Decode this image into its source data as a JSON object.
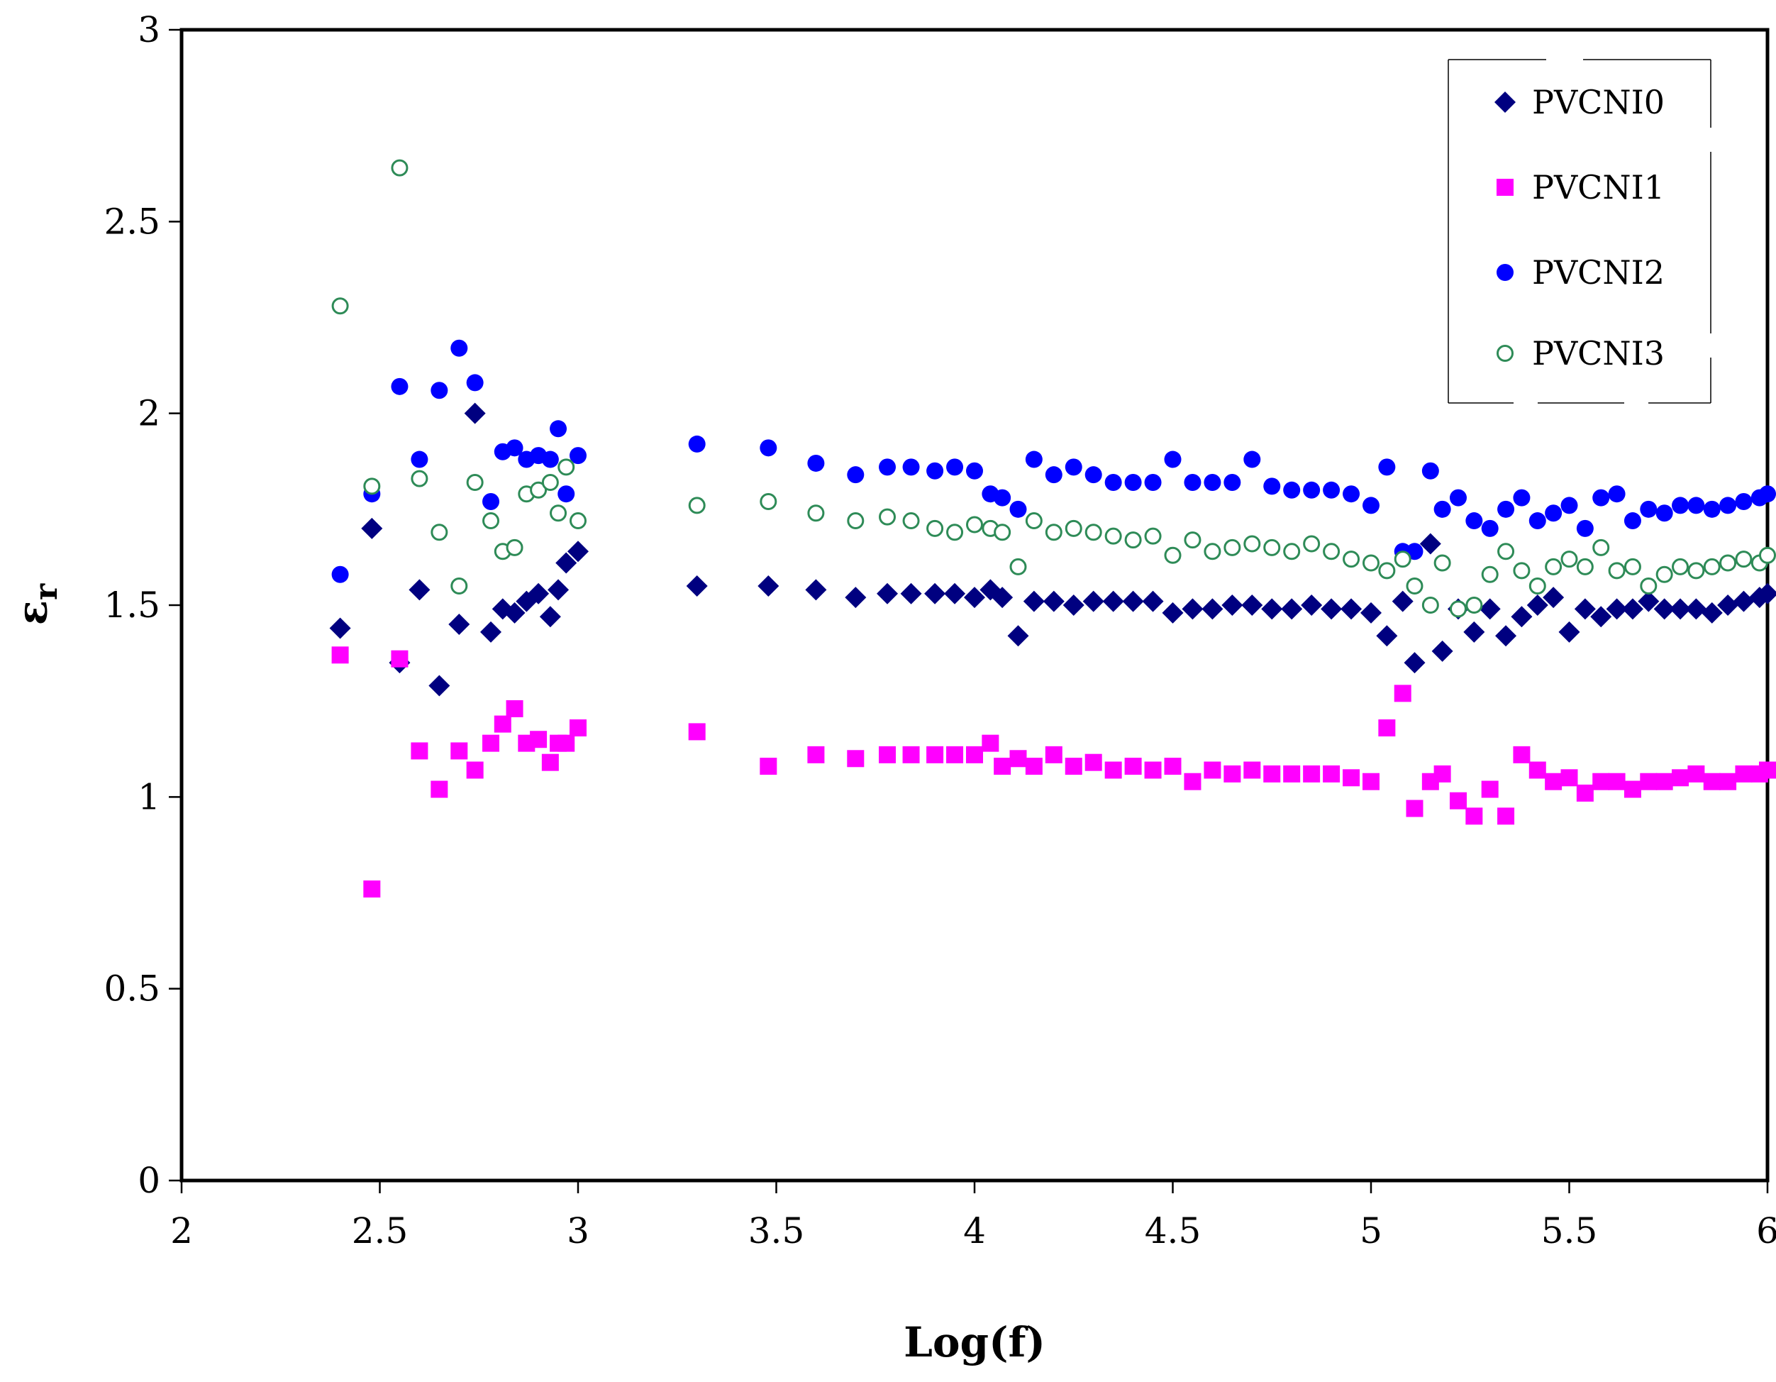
{
  "chart_data": {
    "type": "scatter",
    "title": "",
    "xlabel": "Log(f)",
    "ylabel": "εr",
    "ylabel_main": "ε",
    "ylabel_sub": "r",
    "xlim": [
      2,
      6
    ],
    "ylim": [
      0,
      3
    ],
    "xticks": [
      "2",
      "2.5",
      "3",
      "3.5",
      "4",
      "4.5",
      "5",
      "5.5",
      "6"
    ],
    "yticks": [
      "0",
      "0.5",
      "1",
      "1.5",
      "2",
      "2.5",
      "3"
    ],
    "grid": false,
    "legend_position": "top-right",
    "series": [
      {
        "name": "PVCNI0",
        "marker": "diamond",
        "color": "#000080",
        "x": [
          2.4,
          2.48,
          2.55,
          2.6,
          2.65,
          2.7,
          2.74,
          2.78,
          2.81,
          2.84,
          2.87,
          2.9,
          2.93,
          2.95,
          2.97,
          3.0,
          3.3,
          3.48,
          3.6,
          3.7,
          3.78,
          3.84,
          3.9,
          3.95,
          4.0,
          4.04,
          4.07,
          4.11,
          4.15,
          4.2,
          4.25,
          4.3,
          4.35,
          4.4,
          4.45,
          4.5,
          4.55,
          4.6,
          4.65,
          4.7,
          4.75,
          4.8,
          4.85,
          4.9,
          4.95,
          5.0,
          5.04,
          5.08,
          5.11,
          5.15,
          5.18,
          5.22,
          5.26,
          5.3,
          5.34,
          5.38,
          5.42,
          5.46,
          5.5,
          5.54,
          5.58,
          5.62,
          5.66,
          5.7,
          5.74,
          5.78,
          5.82,
          5.86,
          5.9,
          5.94,
          5.98,
          6.0
        ],
        "y": [
          1.44,
          1.7,
          1.35,
          1.54,
          1.29,
          1.45,
          2.0,
          1.43,
          1.49,
          1.48,
          1.51,
          1.53,
          1.47,
          1.54,
          1.61,
          1.64,
          1.55,
          1.55,
          1.54,
          1.52,
          1.53,
          1.53,
          1.53,
          1.53,
          1.52,
          1.54,
          1.52,
          1.42,
          1.51,
          1.51,
          1.5,
          1.51,
          1.51,
          1.51,
          1.51,
          1.48,
          1.49,
          1.49,
          1.5,
          1.5,
          1.49,
          1.49,
          1.5,
          1.49,
          1.49,
          1.48,
          1.42,
          1.51,
          1.35,
          1.66,
          1.38,
          1.49,
          1.43,
          1.49,
          1.42,
          1.47,
          1.5,
          1.52,
          1.43,
          1.49,
          1.47,
          1.49,
          1.49,
          1.51,
          1.49,
          1.49,
          1.49,
          1.48,
          1.5,
          1.51,
          1.52,
          1.53
        ]
      },
      {
        "name": "PVCNI1",
        "marker": "square",
        "color": "#ff00ff",
        "x": [
          2.4,
          2.48,
          2.55,
          2.6,
          2.65,
          2.7,
          2.74,
          2.78,
          2.81,
          2.84,
          2.87,
          2.9,
          2.93,
          2.95,
          2.97,
          3.0,
          3.3,
          3.48,
          3.6,
          3.7,
          3.78,
          3.84,
          3.9,
          3.95,
          4.0,
          4.04,
          4.07,
          4.11,
          4.15,
          4.2,
          4.25,
          4.3,
          4.35,
          4.4,
          4.45,
          4.5,
          4.55,
          4.6,
          4.65,
          4.7,
          4.75,
          4.8,
          4.85,
          4.9,
          4.95,
          5.0,
          5.04,
          5.08,
          5.11,
          5.15,
          5.18,
          5.22,
          5.26,
          5.3,
          5.34,
          5.38,
          5.42,
          5.46,
          5.5,
          5.54,
          5.58,
          5.62,
          5.66,
          5.7,
          5.74,
          5.78,
          5.82,
          5.86,
          5.9,
          5.94,
          5.98,
          6.0
        ],
        "y": [
          1.37,
          0.76,
          1.36,
          1.12,
          1.02,
          1.12,
          1.07,
          1.14,
          1.19,
          1.23,
          1.14,
          1.15,
          1.09,
          1.14,
          1.14,
          1.18,
          1.17,
          1.08,
          1.11,
          1.1,
          1.11,
          1.11,
          1.11,
          1.11,
          1.11,
          1.14,
          1.08,
          1.1,
          1.08,
          1.11,
          1.08,
          1.09,
          1.07,
          1.08,
          1.07,
          1.08,
          1.04,
          1.07,
          1.06,
          1.07,
          1.06,
          1.06,
          1.06,
          1.06,
          1.05,
          1.04,
          1.18,
          1.27,
          0.97,
          1.04,
          1.06,
          0.99,
          0.95,
          1.02,
          0.95,
          1.11,
          1.07,
          1.04,
          1.05,
          1.01,
          1.04,
          1.04,
          1.02,
          1.04,
          1.04,
          1.05,
          1.06,
          1.04,
          1.04,
          1.06,
          1.06,
          1.07
        ]
      },
      {
        "name": "PVCNI2",
        "marker": "circle",
        "color": "#0000ff",
        "x": [
          2.4,
          2.48,
          2.55,
          2.6,
          2.65,
          2.7,
          2.74,
          2.78,
          2.81,
          2.84,
          2.87,
          2.9,
          2.93,
          2.95,
          2.97,
          3.0,
          3.3,
          3.48,
          3.6,
          3.7,
          3.78,
          3.84,
          3.9,
          3.95,
          4.0,
          4.04,
          4.07,
          4.11,
          4.15,
          4.2,
          4.25,
          4.3,
          4.35,
          4.4,
          4.45,
          4.5,
          4.55,
          4.6,
          4.65,
          4.7,
          4.75,
          4.8,
          4.85,
          4.9,
          4.95,
          5.0,
          5.04,
          5.08,
          5.11,
          5.15,
          5.18,
          5.22,
          5.26,
          5.3,
          5.34,
          5.38,
          5.42,
          5.46,
          5.5,
          5.54,
          5.58,
          5.62,
          5.66,
          5.7,
          5.74,
          5.78,
          5.82,
          5.86,
          5.9,
          5.94,
          5.98,
          6.0
        ],
        "y": [
          1.58,
          1.79,
          2.07,
          1.88,
          2.06,
          2.17,
          2.08,
          1.77,
          1.9,
          1.91,
          1.88,
          1.89,
          1.88,
          1.96,
          1.79,
          1.89,
          1.92,
          1.91,
          1.87,
          1.84,
          1.86,
          1.86,
          1.85,
          1.86,
          1.85,
          1.79,
          1.78,
          1.75,
          1.88,
          1.84,
          1.86,
          1.84,
          1.82,
          1.82,
          1.82,
          1.88,
          1.82,
          1.82,
          1.82,
          1.88,
          1.81,
          1.8,
          1.8,
          1.8,
          1.79,
          1.76,
          1.86,
          1.64,
          1.64,
          1.85,
          1.75,
          1.78,
          1.72,
          1.7,
          1.75,
          1.78,
          1.72,
          1.74,
          1.76,
          1.7,
          1.78,
          1.79,
          1.72,
          1.75,
          1.74,
          1.76,
          1.76,
          1.75,
          1.76,
          1.77,
          1.78,
          1.79
        ]
      },
      {
        "name": "PVCNI3",
        "marker": "open-circle",
        "color": "#2e8b57",
        "x": [
          2.4,
          2.48,
          2.55,
          2.6,
          2.65,
          2.7,
          2.74,
          2.78,
          2.81,
          2.84,
          2.87,
          2.9,
          2.93,
          2.95,
          2.97,
          3.0,
          3.3,
          3.48,
          3.6,
          3.7,
          3.78,
          3.84,
          3.9,
          3.95,
          4.0,
          4.04,
          4.07,
          4.11,
          4.15,
          4.2,
          4.25,
          4.3,
          4.35,
          4.4,
          4.45,
          4.5,
          4.55,
          4.6,
          4.65,
          4.7,
          4.75,
          4.8,
          4.85,
          4.9,
          4.95,
          5.0,
          5.04,
          5.08,
          5.11,
          5.15,
          5.18,
          5.22,
          5.26,
          5.3,
          5.34,
          5.38,
          5.42,
          5.46,
          5.5,
          5.54,
          5.58,
          5.62,
          5.66,
          5.7,
          5.74,
          5.78,
          5.82,
          5.86,
          5.9,
          5.94,
          5.98,
          6.0
        ],
        "y": [
          2.28,
          1.81,
          2.64,
          1.83,
          1.69,
          1.55,
          1.82,
          1.72,
          1.64,
          1.65,
          1.79,
          1.8,
          1.82,
          1.74,
          1.86,
          1.72,
          1.76,
          1.77,
          1.74,
          1.72,
          1.73,
          1.72,
          1.7,
          1.69,
          1.71,
          1.7,
          1.69,
          1.6,
          1.72,
          1.69,
          1.7,
          1.69,
          1.68,
          1.67,
          1.68,
          1.63,
          1.67,
          1.64,
          1.65,
          1.66,
          1.65,
          1.64,
          1.66,
          1.64,
          1.62,
          1.61,
          1.59,
          1.62,
          1.55,
          1.5,
          1.61,
          1.49,
          1.5,
          1.58,
          1.64,
          1.59,
          1.55,
          1.6,
          1.62,
          1.6,
          1.65,
          1.59,
          1.6,
          1.55,
          1.58,
          1.6,
          1.59,
          1.6,
          1.61,
          1.62,
          1.61,
          1.63
        ]
      }
    ]
  }
}
